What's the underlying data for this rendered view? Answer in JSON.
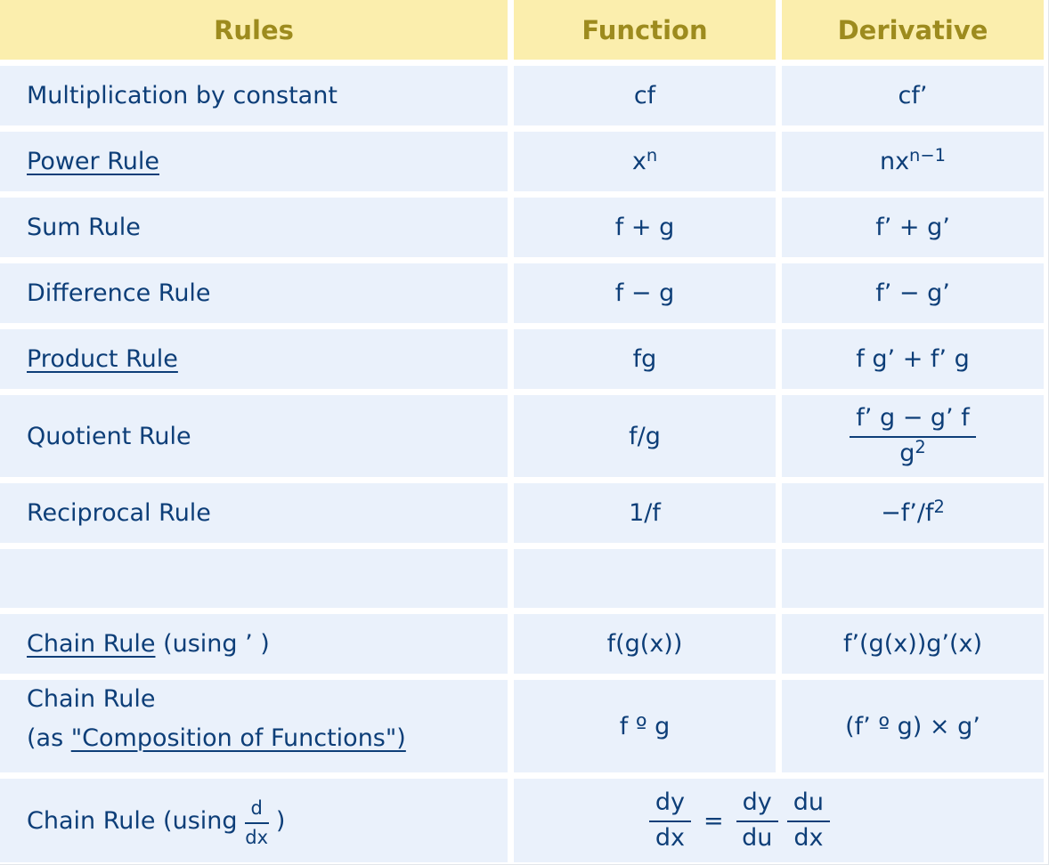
{
  "page": {
    "colors": {
      "header_bg": "#FBEEAD",
      "header_ink": "#9D8B1E",
      "cell_bg": "#EAF1FB",
      "ink": "#0D3E78",
      "page_bg": "#FFFFFF",
      "hairline": "#E2E6EA"
    }
  },
  "header": {
    "rules": "Rules",
    "function": "Function",
    "derivative": "Derivative"
  },
  "rows": {
    "mult": {
      "rule": "Multiplication by constant",
      "fn": "cf",
      "dv": "cf’"
    },
    "power": {
      "rule_link": "Power Rule",
      "fn_base": "x",
      "fn_sup": "n",
      "dv_base": "nx",
      "dv_sup": "n−1"
    },
    "sum": {
      "rule": "Sum Rule",
      "fn": "f + g",
      "dv": "f’ + g’"
    },
    "diff": {
      "rule": "Difference Rule",
      "fn": "f − g",
      "dv": "f’ − g’"
    },
    "product": {
      "rule_link": "Product Rule",
      "fn": "fg",
      "dv": "f g’ + f’ g"
    },
    "quotient": {
      "rule": "Quotient Rule",
      "fn": "f/g",
      "dv_num": "f’ g − g’ f",
      "dv_den_base": "g",
      "dv_den_sup": "2"
    },
    "reciprocal": {
      "rule": "Reciprocal Rule",
      "fn": "1/f",
      "dv_base": "−f’/f",
      "dv_sup": "2"
    },
    "empty": {
      "rule": "",
      "fn": "",
      "dv": ""
    },
    "chain_prime": {
      "rule_link": "Chain Rule",
      "rule_rest": " (using ’ )",
      "fn": "f(g(x))",
      "dv": "f’(g(x))g’(x)"
    },
    "chain_comp": {
      "rule_line1": "Chain Rule",
      "rule_line2_pre": "(as ",
      "rule_line2_link": "\"Composition of Functions\")",
      "fn": "f º g",
      "dv": "(f’ º g) × g’"
    },
    "chain_dx": {
      "rule_pre": "Chain Rule (using ",
      "frac_num": "d",
      "frac_den": "dx",
      "rule_post": " )",
      "eq_lhs_num": "dy",
      "eq_lhs_den": "dx",
      "eq_sign": "=",
      "eq_a_num": "dy",
      "eq_a_den": "du",
      "eq_b_num": "du",
      "eq_b_den": "dx"
    }
  }
}
